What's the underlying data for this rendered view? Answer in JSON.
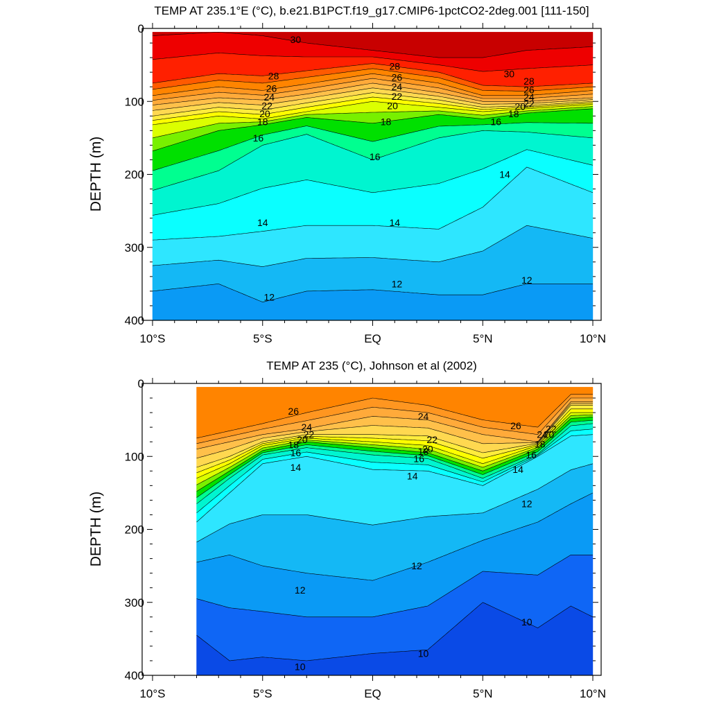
{
  "chart_data": [
    {
      "type": "contour",
      "title": "TEMP AT 235.1°E (°C), b.e21.B1PCT.f19_g17.CMIP6-1pctCO2-2deg.001 [111-150]",
      "xlabel": "",
      "ylabel": "DEPTH (m)",
      "xlim": [
        -10,
        10
      ],
      "ylim": [
        400,
        0
      ],
      "x_ticks": [
        -10,
        -5,
        0,
        5,
        10
      ],
      "x_tick_labels": [
        "10°S",
        "5°S",
        "EQ",
        "5°N",
        "10°N"
      ],
      "y_ticks": [
        0,
        100,
        200,
        300,
        400
      ],
      "y_tick_labels": [
        "0",
        "100",
        "200",
        "300",
        "400"
      ],
      "contour_interval": 1,
      "value_range": [
        10,
        31
      ],
      "data_start_x": -10,
      "profile_x": [
        -10,
        -7,
        -5,
        -3,
        0,
        3,
        5,
        7,
        10
      ],
      "contours": [
        {
          "level": 30,
          "depths": [
            10,
            5,
            10,
            20,
            30,
            40,
            40,
            30,
            25
          ]
        },
        {
          "level": 28,
          "depths": [
            75,
            62,
            65,
            58,
            48,
            60,
            78,
            80,
            75
          ]
        },
        {
          "level": 26,
          "depths": [
            92,
            80,
            85,
            76,
            62,
            75,
            92,
            92,
            85
          ]
        },
        {
          "level": 24,
          "depths": [
            105,
            95,
            98,
            90,
            75,
            88,
            100,
            100,
            95
          ]
        },
        {
          "level": 22,
          "depths": [
            120,
            108,
            112,
            102,
            88,
            98,
            108,
            106,
            100
          ]
        },
        {
          "level": 20,
          "depths": [
            132,
            120,
            124,
            114,
            100,
            108,
            114,
            110,
            104
          ]
        },
        {
          "level": 18,
          "depths": [
            168,
            140,
            132,
            122,
            130,
            118,
            124,
            116,
            110
          ]
        },
        {
          "level": 16,
          "depths": [
            222,
            195,
            160,
            145,
            180,
            150,
            140,
            142,
            150
          ]
        },
        {
          "level": 14,
          "depths": [
            290,
            285,
            278,
            270,
            270,
            275,
            245,
            190,
            225
          ]
        },
        {
          "level": 12,
          "depths": [
            360,
            350,
            375,
            360,
            358,
            365,
            365,
            350,
            350
          ]
        }
      ],
      "contour_labels": [
        {
          "text": "30",
          "x": -3.5,
          "y": 15
        },
        {
          "text": "30",
          "x": 6.2,
          "y": 62
        },
        {
          "text": "28",
          "x": 1.0,
          "y": 52
        },
        {
          "text": "28",
          "x": 7.1,
          "y": 72
        },
        {
          "text": "28",
          "x": -4.5,
          "y": 65
        },
        {
          "text": "26",
          "x": -4.6,
          "y": 82
        },
        {
          "text": "26",
          "x": 1.1,
          "y": 67
        },
        {
          "text": "26",
          "x": 7.1,
          "y": 84
        },
        {
          "text": "24",
          "x": -4.7,
          "y": 94
        },
        {
          "text": "24",
          "x": 1.1,
          "y": 80
        },
        {
          "text": "24",
          "x": 7.1,
          "y": 94
        },
        {
          "text": "22",
          "x": -4.8,
          "y": 106
        },
        {
          "text": "22",
          "x": 1.1,
          "y": 93
        },
        {
          "text": "22",
          "x": 7.1,
          "y": 103
        },
        {
          "text": "20",
          "x": -4.9,
          "y": 117
        },
        {
          "text": "20",
          "x": 0.9,
          "y": 106
        },
        {
          "text": "20",
          "x": 6.7,
          "y": 107
        },
        {
          "text": "18",
          "x": -5.0,
          "y": 128
        },
        {
          "text": "18",
          "x": 0.6,
          "y": 128
        },
        {
          "text": "18",
          "x": 6.4,
          "y": 117
        },
        {
          "text": "16",
          "x": -5.2,
          "y": 150
        },
        {
          "text": "16",
          "x": 0.1,
          "y": 176
        },
        {
          "text": "16",
          "x": 5.6,
          "y": 128
        },
        {
          "text": "14",
          "x": -5.0,
          "y": 266
        },
        {
          "text": "14",
          "x": 1.0,
          "y": 266
        },
        {
          "text": "14",
          "x": 6.0,
          "y": 200
        },
        {
          "text": "12",
          "x": -4.7,
          "y": 368
        },
        {
          "text": "12",
          "x": 1.1,
          "y": 350
        },
        {
          "text": "12",
          "x": 7.0,
          "y": 345
        }
      ]
    },
    {
      "type": "contour",
      "title": "TEMP AT 235 (°C), Johnson et al (2002)",
      "xlabel": "",
      "ylabel": "DEPTH (m)",
      "xlim": [
        -10,
        10
      ],
      "ylim": [
        400,
        0
      ],
      "x_ticks": [
        -10,
        -5,
        0,
        5,
        10
      ],
      "x_tick_labels": [
        "10°S",
        "5°S",
        "EQ",
        "5°N",
        "10°N"
      ],
      "y_ticks": [
        0,
        100,
        200,
        300,
        400
      ],
      "y_tick_labels": [
        "0",
        "100",
        "200",
        "300",
        "400"
      ],
      "contour_interval": 1,
      "value_range": [
        9,
        28
      ],
      "data_start_x": -8,
      "profile_x": [
        -8,
        -6.5,
        -5,
        -3,
        0,
        2.5,
        5,
        7.5,
        9,
        10
      ],
      "contours": [
        {
          "level": 26,
          "depths": [
            75,
            65,
            55,
            40,
            20,
            30,
            50,
            60,
            15,
            15
          ]
        },
        {
          "level": 24,
          "depths": [
            90,
            80,
            70,
            62,
            45,
            50,
            70,
            80,
            25,
            25
          ]
        },
        {
          "level": 22,
          "depths": [
            115,
            100,
            80,
            70,
            70,
            72,
            95,
            82,
            30,
            30
          ]
        },
        {
          "level": 20,
          "depths": [
            130,
            110,
            85,
            75,
            80,
            85,
            110,
            85,
            40,
            40
          ]
        },
        {
          "level": 18,
          "depths": [
            148,
            120,
            92,
            80,
            88,
            95,
            120,
            90,
            48,
            46
          ]
        },
        {
          "level": 16,
          "depths": [
            165,
            130,
            98,
            88,
            98,
            103,
            130,
            97,
            58,
            55
          ]
        },
        {
          "level": 14,
          "depths": [
            190,
            150,
            110,
            100,
            118,
            120,
            140,
            100,
            72,
            70
          ]
        },
        {
          "level": 12,
          "depths": [
            245,
            235,
            250,
            260,
            270,
            245,
            215,
            190,
            165,
            150
          ]
        },
        {
          "level": 10,
          "depths": [
            345,
            380,
            375,
            380,
            370,
            365,
            300,
            335,
            305,
            320
          ]
        }
      ],
      "contour_labels": [
        {
          "text": "26",
          "x": -3.6,
          "y": 38
        },
        {
          "text": "26",
          "x": 6.5,
          "y": 58
        },
        {
          "text": "24",
          "x": -3.0,
          "y": 60
        },
        {
          "text": "24",
          "x": 2.3,
          "y": 45
        },
        {
          "text": "24",
          "x": 7.7,
          "y": 70
        },
        {
          "text": "22",
          "x": -2.9,
          "y": 70
        },
        {
          "text": "22",
          "x": 2.7,
          "y": 77
        },
        {
          "text": "22",
          "x": 8.1,
          "y": 62
        },
        {
          "text": "20",
          "x": -3.2,
          "y": 77
        },
        {
          "text": "20",
          "x": 2.5,
          "y": 90
        },
        {
          "text": "20",
          "x": 8.0,
          "y": 70
        },
        {
          "text": "18",
          "x": -3.6,
          "y": 84
        },
        {
          "text": "18",
          "x": 2.3,
          "y": 93
        },
        {
          "text": "18",
          "x": 7.6,
          "y": 83
        },
        {
          "text": "16",
          "x": -3.5,
          "y": 95
        },
        {
          "text": "16",
          "x": 2.1,
          "y": 103
        },
        {
          "text": "16",
          "x": 7.2,
          "y": 98
        },
        {
          "text": "14",
          "x": -3.5,
          "y": 115
        },
        {
          "text": "14",
          "x": 1.8,
          "y": 127
        },
        {
          "text": "14",
          "x": 6.6,
          "y": 118
        },
        {
          "text": "12",
          "x": 7.0,
          "y": 165
        },
        {
          "text": "12",
          "x": 2.0,
          "y": 250
        },
        {
          "text": "12",
          "x": -3.3,
          "y": 283
        },
        {
          "text": "10",
          "x": 2.3,
          "y": 370
        },
        {
          "text": "10",
          "x": 7.0,
          "y": 327
        },
        {
          "text": "10",
          "x": -3.3,
          "y": 388
        }
      ]
    }
  ]
}
